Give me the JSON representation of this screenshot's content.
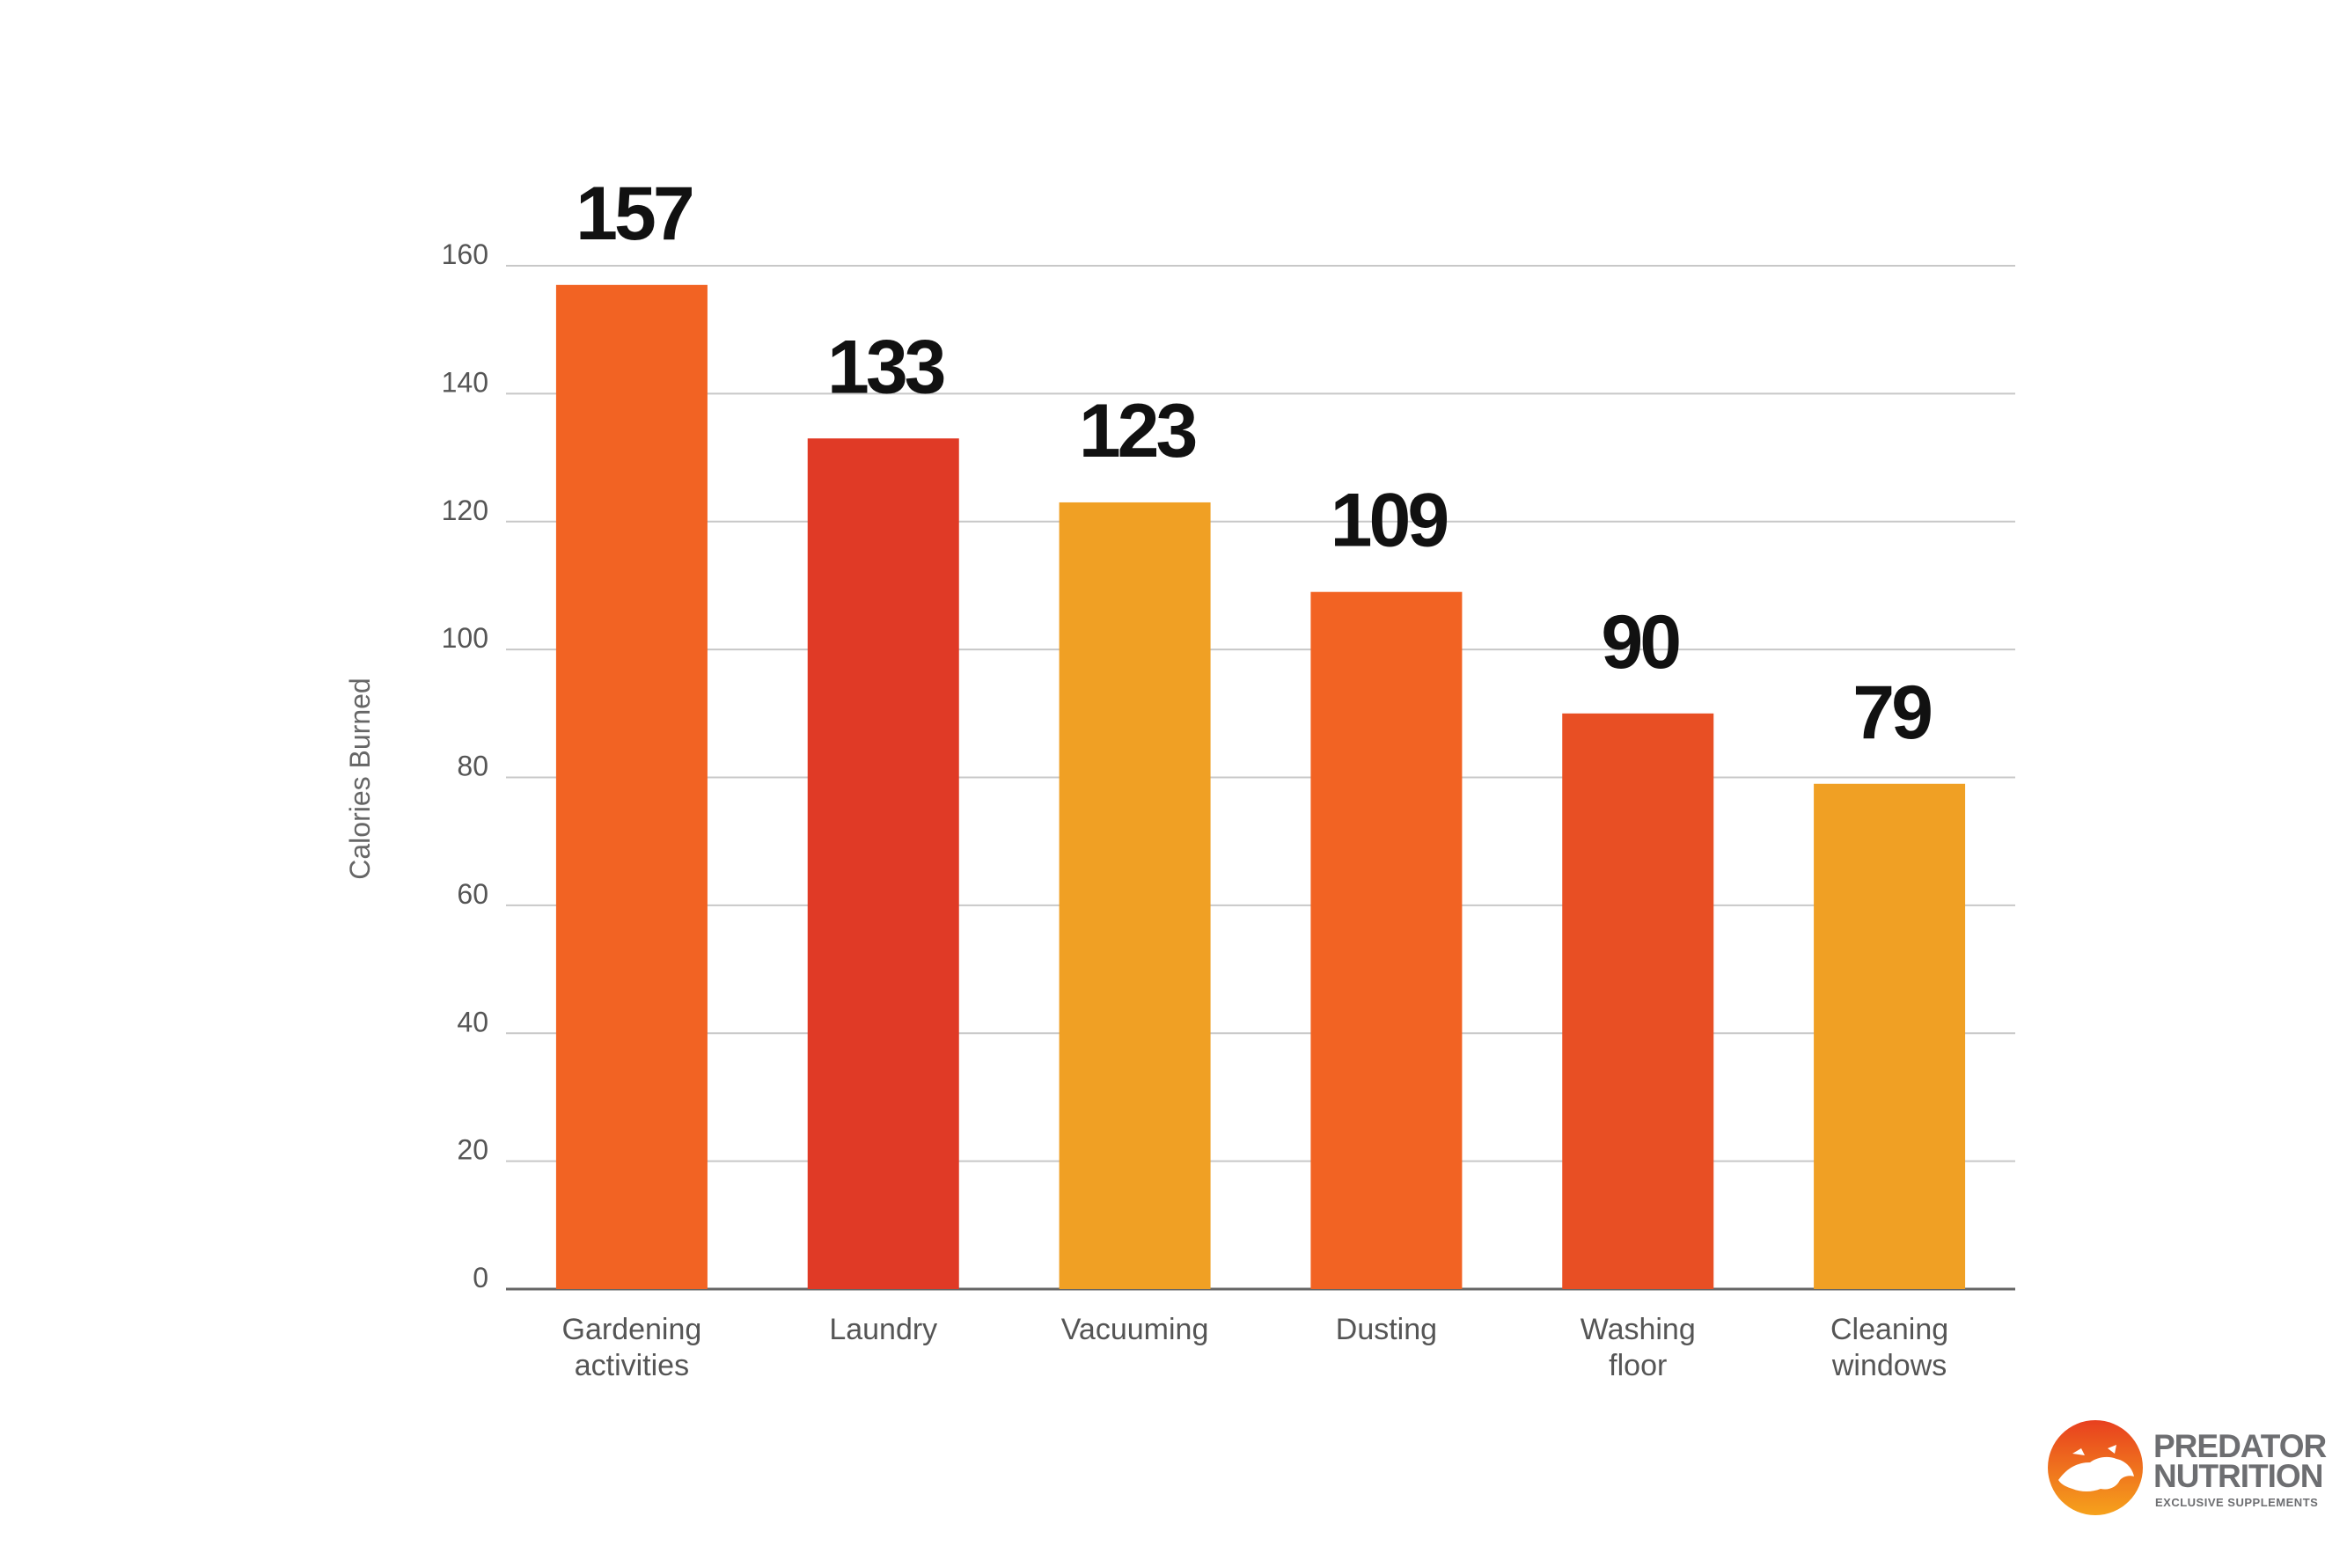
{
  "chart_data": {
    "type": "bar",
    "title": "",
    "xlabel": "",
    "ylabel": "Calories Burned",
    "ylim": [
      0,
      160
    ],
    "yticks": [
      0,
      20,
      40,
      60,
      80,
      100,
      120,
      140,
      160
    ],
    "grid": true,
    "categories": [
      [
        "Gardening",
        "activities"
      ],
      [
        "Laundry"
      ],
      [
        "Vacuuming"
      ],
      [
        "Dusting"
      ],
      [
        "Washing",
        "floor"
      ],
      [
        "Cleaning",
        "windows"
      ]
    ],
    "values": [
      157,
      133,
      123,
      109,
      90,
      79
    ],
    "value_labels": [
      "157",
      "133",
      "123",
      "109",
      "90",
      "79"
    ],
    "colors": [
      "#f26323",
      "#e03a26",
      "#f0a024",
      "#f26323",
      "#e84f24",
      "#f0a024"
    ]
  },
  "logo": {
    "line1": "PREDATOR",
    "line2": "NUTRITION",
    "line3": "EXCLUSIVE SUPPLEMENTS",
    "accent": "#f26323",
    "text_color": "#6d6e71"
  }
}
